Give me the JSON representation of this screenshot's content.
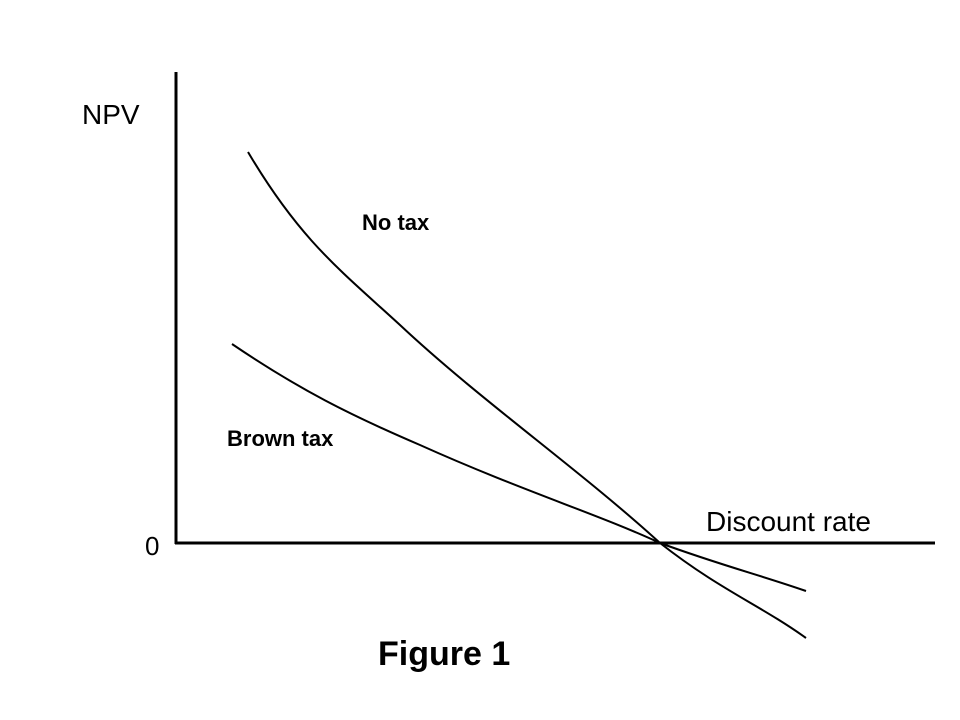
{
  "axes": {
    "y_label": "NPV",
    "x_label": "Discount rate",
    "origin_label": "0"
  },
  "curves": [
    {
      "label": "No tax"
    },
    {
      "label": "Brown tax"
    }
  ],
  "caption": "Figure 1"
}
